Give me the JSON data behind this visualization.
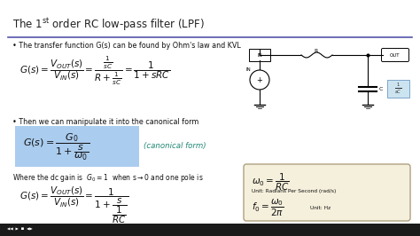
{
  "figsize": [
    4.74,
    2.66
  ],
  "dpi": 100,
  "bg": "#ffffff",
  "title": "The 1$^{\\mathrm{st}}$ order RC low-pass filter (LPF)",
  "title_fs": 8.5,
  "line_color": "#5555aa",
  "bullet1": "• The transfer function G(s) can be found by Ohm's law and KVL",
  "eq1": "$G(s) = \\dfrac{V_{OUT}(s)}{V_{IN}(s)} = \\dfrac{\\frac{1}{sC}}{R + \\frac{1}{sC}} = \\dfrac{1}{1 + sRC}$",
  "bullet2": "• Then we can manipulate it into the canonical form",
  "canon_eq": "$G(s) = \\dfrac{G_0}{1 + \\dfrac{s}{\\omega_0}}$",
  "canon_label": "(canonical form)",
  "canon_bg": "#aaccee",
  "dc_text": "Where the dc gain is  $G_0 = 1$  when s\\u21920 and one pole is",
  "eq2": "$G(s) = \\dfrac{V_{OUT}(s)}{V_{IN}(s)} = \\dfrac{1}{1 + \\dfrac{s}{\\dfrac{1}{RC}}}$",
  "omega_eq": "$\\omega_0 = \\dfrac{1}{RC}$",
  "omega_unit": "Unit: Radians Per Second (rad/s)",
  "f0_eq": "$f_0 = \\dfrac{\\omega_0}{2\\pi}$",
  "f0_unit": "Unit: Hz",
  "box_bg": "#f5f0dc",
  "box_edge": "#b0a080",
  "bottom_bar": "#1a1a1a"
}
